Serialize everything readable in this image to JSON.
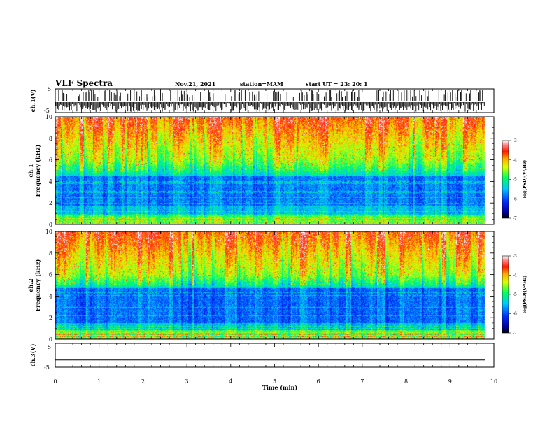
{
  "header": {
    "title": "VLF Spectra",
    "date": "Nov.21, 2021",
    "station": "station=MAM",
    "start": "start  UT =   23: 20: 1"
  },
  "chart_data": [
    {
      "type": "line",
      "panel": "ch1-waveform",
      "ylabel": "ch.1(V)",
      "ylim": [
        -5,
        5
      ],
      "yticks": [
        "5",
        "-5"
      ],
      "xlim": [
        0,
        10
      ],
      "description_values": {
        "amplitude_range_v": [
          -5,
          5
        ],
        "signal": "dense impulsive sferics"
      }
    },
    {
      "type": "heatmap",
      "panel": "ch1-spectrogram",
      "ylabel": [
        "ch.1",
        "Frequency  (kHz)"
      ],
      "ylim": [
        0,
        10
      ],
      "yticks": [
        "0",
        "2",
        "4",
        "6",
        "8",
        "10"
      ],
      "xlim": [
        0,
        10
      ],
      "data_end_min": 9.8,
      "colorbar": {
        "label": "log(PSD)(V²/Hz)",
        "range": [
          -7,
          -3
        ],
        "ticks": [
          "-3",
          "-4",
          "-5",
          "-6",
          "-7"
        ]
      },
      "features": {
        "weak_band_khz": [
          1.8,
          4.5
        ],
        "strong_above_khz": 6
      }
    },
    {
      "type": "heatmap",
      "panel": "ch2-spectrogram",
      "ylabel": [
        "ch.2",
        "Frequency  (kHz)"
      ],
      "ylim": [
        0,
        10
      ],
      "yticks": [
        "0",
        "2",
        "4",
        "6",
        "8",
        "10"
      ],
      "xlim": [
        0,
        10
      ],
      "data_end_min": 9.8,
      "colorbar": {
        "label": "log(PSD)(V²/Hz)",
        "range": [
          -7,
          -3
        ],
        "ticks": [
          "-3",
          "-4",
          "-5",
          "-6",
          "-7"
        ]
      },
      "features": {
        "weak_band_khz": [
          1.5,
          4.8
        ],
        "strong_above_khz": 6
      }
    },
    {
      "type": "line",
      "panel": "ch3-waveform",
      "ylabel": "ch.3(V)",
      "ylim": [
        -5,
        5
      ],
      "yticks": [
        "5",
        "-5"
      ],
      "xlim": [
        0,
        10
      ],
      "values_constant_v": -2,
      "xlabel": "Time  (min)",
      "xticks": [
        "0",
        "1",
        "2",
        "3",
        "4",
        "5",
        "6",
        "7",
        "8",
        "9",
        "10"
      ]
    }
  ]
}
